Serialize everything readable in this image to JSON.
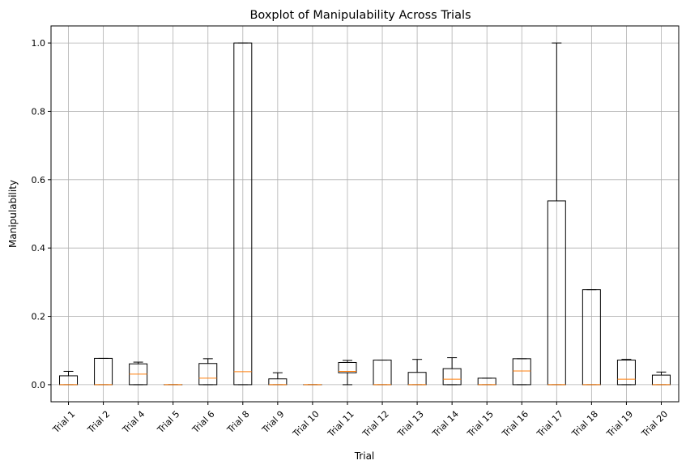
{
  "chart_data": {
    "type": "boxplot",
    "title": "Boxplot of Manipulability Across Trials",
    "xlabel": "Trial",
    "ylabel": "Manipulability",
    "ylim": [
      -0.05,
      1.05
    ],
    "yticks": [
      "0.0",
      "0.2",
      "0.4",
      "0.6",
      "0.8",
      "1.0"
    ],
    "ytick_values": [
      0.0,
      0.2,
      0.4,
      0.6,
      0.8,
      1.0
    ],
    "grid": true,
    "colors": {
      "box": "#000000",
      "median": "#ff7f0e",
      "grid": "#b0b0b0"
    },
    "boxes": [
      {
        "label": "Trial 1",
        "whislo": 0.0,
        "q1": 0.0,
        "med": 0.0,
        "q3": 0.026,
        "whishi": 0.039
      },
      {
        "label": "Trial 2",
        "whislo": 0.0,
        "q1": 0.0,
        "med": 0.0,
        "q3": 0.077,
        "whishi": 0.077
      },
      {
        "label": "Trial 4",
        "whislo": 0.0,
        "q1": 0.0,
        "med": 0.031,
        "q3": 0.061,
        "whishi": 0.066
      },
      {
        "label": "Trial 5",
        "whislo": 0.0,
        "q1": 0.0,
        "med": 0.0,
        "q3": 0.0,
        "whishi": 0.0
      },
      {
        "label": "Trial 6",
        "whislo": 0.0,
        "q1": 0.0,
        "med": 0.019,
        "q3": 0.062,
        "whishi": 0.076
      },
      {
        "label": "Trial 8",
        "whislo": 0.0,
        "q1": 0.0,
        "med": 0.038,
        "q3": 1.0,
        "whishi": 1.0
      },
      {
        "label": "Trial 9",
        "whislo": 0.0,
        "q1": 0.0,
        "med": 0.0,
        "q3": 0.017,
        "whishi": 0.035
      },
      {
        "label": "Trial 10",
        "whislo": 0.0,
        "q1": 0.0,
        "med": 0.0,
        "q3": 0.0,
        "whishi": 0.0
      },
      {
        "label": "Trial 11",
        "whislo": 0.0,
        "q1": 0.035,
        "med": 0.039,
        "q3": 0.065,
        "whishi": 0.071
      },
      {
        "label": "Trial 12",
        "whislo": 0.0,
        "q1": 0.0,
        "med": 0.0,
        "q3": 0.072,
        "whishi": 0.072
      },
      {
        "label": "Trial 13",
        "whislo": 0.0,
        "q1": 0.0,
        "med": 0.0,
        "q3": 0.036,
        "whishi": 0.074
      },
      {
        "label": "Trial 14",
        "whislo": 0.0,
        "q1": 0.0,
        "med": 0.016,
        "q3": 0.047,
        "whishi": 0.079
      },
      {
        "label": "Trial 15",
        "whislo": 0.0,
        "q1": 0.0,
        "med": 0.0,
        "q3": 0.019,
        "whishi": 0.019
      },
      {
        "label": "Trial 16",
        "whislo": 0.0,
        "q1": 0.0,
        "med": 0.04,
        "q3": 0.076,
        "whishi": 0.076
      },
      {
        "label": "Trial 17",
        "whislo": 0.0,
        "q1": 0.0,
        "med": 0.0,
        "q3": 0.538,
        "whishi": 1.0
      },
      {
        "label": "Trial 18",
        "whislo": 0.0,
        "q1": 0.0,
        "med": 0.0,
        "q3": 0.278,
        "whishi": 0.278
      },
      {
        "label": "Trial 19",
        "whislo": 0.0,
        "q1": 0.0,
        "med": 0.016,
        "q3": 0.072,
        "whishi": 0.074
      },
      {
        "label": "Trial 20",
        "whislo": 0.0,
        "q1": 0.0,
        "med": 0.0,
        "q3": 0.028,
        "whishi": 0.037
      }
    ]
  }
}
